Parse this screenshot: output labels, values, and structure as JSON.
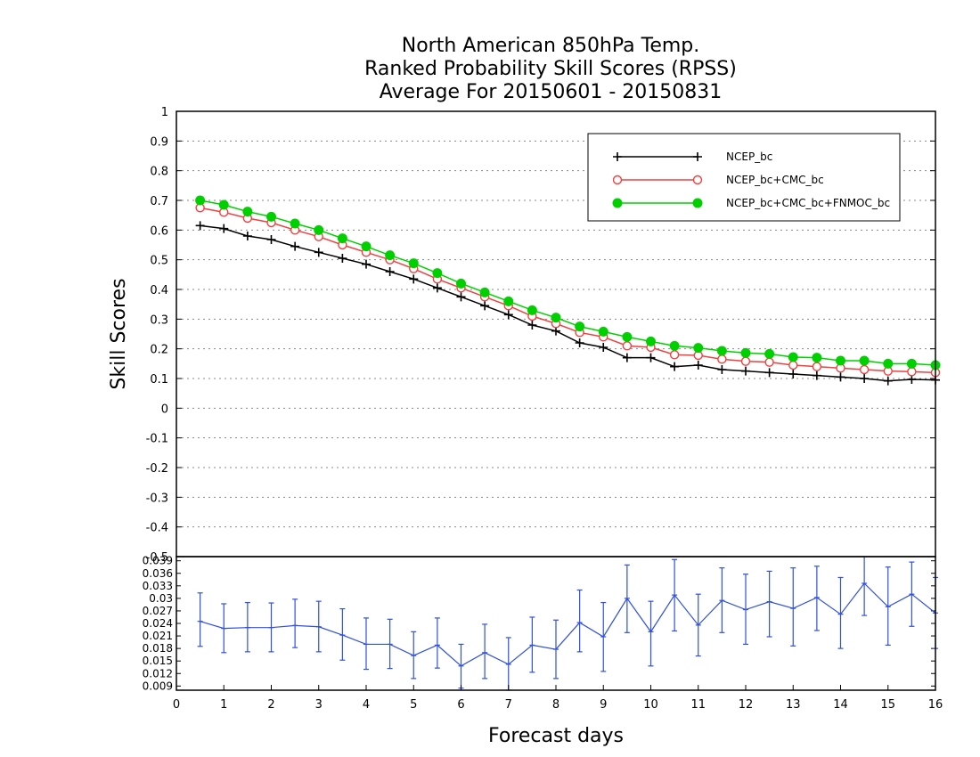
{
  "chart_data": [
    {
      "type": "line",
      "title": [
        "North American 850hPa Temp.",
        "Ranked Probability Skill Scores (RPSS)",
        "Average For 20150601 - 20150831"
      ],
      "ylabel": "Skill Scores",
      "xlabel": "Forecast days",
      "xlim": [
        0,
        16
      ],
      "ylim": [
        -0.5,
        1
      ],
      "yticks": [
        "-0.5",
        "-0.4",
        "-0.3",
        "-0.2",
        "-0.1",
        "0",
        "0.1",
        "0.2",
        "0.3",
        "0.4",
        "0.5",
        "0.6",
        "0.7",
        "0.8",
        "0.9",
        "1"
      ],
      "grid": "dotted horizontal",
      "legend_position": "top-right",
      "x": [
        0.5,
        1,
        1.5,
        2,
        2.5,
        3,
        3.5,
        4,
        4.5,
        5,
        5.5,
        6,
        6.5,
        7,
        7.5,
        8,
        8.5,
        9,
        9.5,
        10,
        10.5,
        11,
        11.5,
        12,
        12.5,
        13,
        13.5,
        14,
        14.5,
        15,
        15.5,
        16
      ],
      "series": [
        {
          "name": "NCEP_bc",
          "color": "#000000",
          "marker": "plus",
          "values": [
            0.615,
            0.605,
            0.58,
            0.568,
            0.545,
            0.525,
            0.505,
            0.485,
            0.46,
            0.435,
            0.405,
            0.375,
            0.345,
            0.315,
            0.28,
            0.26,
            0.22,
            0.205,
            0.17,
            0.17,
            0.14,
            0.145,
            0.13,
            0.125,
            0.12,
            0.115,
            0.11,
            0.105,
            0.1,
            0.092,
            0.097,
            0.095
          ]
        },
        {
          "name": "NCEP_bc+CMC_bc",
          "color": "#f04040",
          "marker": "open-circle",
          "values": [
            0.675,
            0.66,
            0.64,
            0.625,
            0.6,
            0.578,
            0.55,
            0.525,
            0.5,
            0.47,
            0.435,
            0.405,
            0.375,
            0.345,
            0.31,
            0.285,
            0.255,
            0.24,
            0.21,
            0.205,
            0.18,
            0.178,
            0.165,
            0.158,
            0.155,
            0.145,
            0.14,
            0.135,
            0.13,
            0.125,
            0.123,
            0.12
          ]
        },
        {
          "name": "NCEP_bc+CMC_bc+FNMOC_bc",
          "color": "#00d000",
          "marker": "filled-circle",
          "values": [
            0.7,
            0.685,
            0.662,
            0.645,
            0.622,
            0.6,
            0.572,
            0.545,
            0.515,
            0.488,
            0.455,
            0.42,
            0.39,
            0.36,
            0.33,
            0.305,
            0.275,
            0.258,
            0.24,
            0.225,
            0.21,
            0.203,
            0.193,
            0.186,
            0.183,
            0.172,
            0.17,
            0.16,
            0.16,
            0.15,
            0.15,
            0.145
          ]
        }
      ]
    },
    {
      "type": "line",
      "xlabel": "Forecast days",
      "xlim": [
        0,
        16
      ],
      "ylim": [
        0.008,
        0.04
      ],
      "xticks": [
        "0",
        "1",
        "2",
        "3",
        "4",
        "5",
        "6",
        "7",
        "8",
        "9",
        "10",
        "11",
        "12",
        "13",
        "14",
        "15",
        "16"
      ],
      "yticks": [
        "0.009",
        "0.012",
        "0.015",
        "0.018",
        "0.021",
        "0.024",
        "0.027",
        "0.03",
        "0.033",
        "0.036",
        "0.039"
      ],
      "series": [
        {
          "color": "#3050e0",
          "marker": "error-bar",
          "values": [
            0.0245,
            0.0228,
            0.023,
            0.023,
            0.0235,
            0.0232,
            0.0212,
            0.019,
            0.019,
            0.0163,
            0.0188,
            0.0138,
            0.017,
            0.0142,
            0.0188,
            0.0178,
            0.0242,
            0.0208,
            0.03,
            0.022,
            0.0308,
            0.0236,
            0.0295,
            0.0273,
            0.0292,
            0.0276,
            0.0302,
            0.0262,
            0.0336,
            0.028,
            0.031,
            0.0265
          ],
          "error_low": [
            0.0185,
            0.017,
            0.0172,
            0.0172,
            0.0182,
            0.0172,
            0.0152,
            0.013,
            0.0132,
            0.0108,
            0.0133,
            0.0085,
            0.0108,
            0.008,
            0.0123,
            0.0108,
            0.0172,
            0.0125,
            0.0218,
            0.0138,
            0.0222,
            0.0162,
            0.0218,
            0.019,
            0.0208,
            0.0186,
            0.0223,
            0.018,
            0.0259,
            0.0188,
            0.0233,
            0.018
          ],
          "error_high": [
            0.0313,
            0.0287,
            0.029,
            0.0289,
            0.0298,
            0.0293,
            0.0275,
            0.0253,
            0.025,
            0.022,
            0.0253,
            0.019,
            0.0238,
            0.0206,
            0.0255,
            0.0248,
            0.032,
            0.029,
            0.038,
            0.0293,
            0.0393,
            0.031,
            0.0373,
            0.0358,
            0.0365,
            0.0373,
            0.0377,
            0.035,
            0.0413,
            0.0375,
            0.0387,
            0.035
          ]
        }
      ]
    }
  ]
}
